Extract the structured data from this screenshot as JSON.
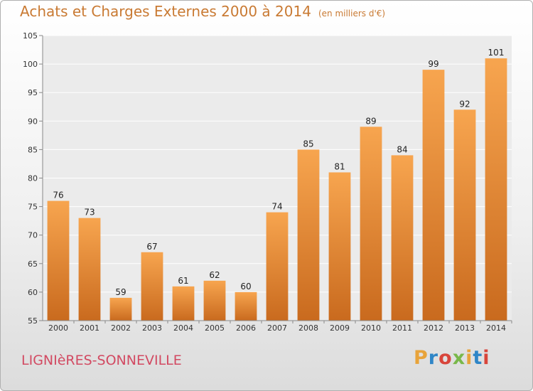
{
  "header": {
    "title": "Achats et Charges Externes 2000 à 2014",
    "unit": "(en milliers d'€)"
  },
  "footer": {
    "commune": "LIGNIèRES-SONNEVILLE",
    "logo_letters": [
      "P",
      "r",
      "o",
      "x",
      "i",
      "t",
      "i"
    ],
    "logo_colors": [
      "#e8a33a",
      "#2f86c7",
      "#d8453b",
      "#79b84a",
      "#e8a33a",
      "#2f86c7",
      "#d8453b"
    ]
  },
  "chart_data": {
    "type": "bar",
    "categories": [
      "2000",
      "2001",
      "2002",
      "2003",
      "2004",
      "2005",
      "2006",
      "2007",
      "2008",
      "2009",
      "2010",
      "2011",
      "2012",
      "2013",
      "2014"
    ],
    "values": [
      76,
      73,
      59,
      67,
      61,
      62,
      60,
      74,
      85,
      81,
      89,
      84,
      99,
      92,
      101
    ],
    "title": "Achats et Charges Externes 2000 à 2014",
    "subtitle": "(en milliers d'€)",
    "xlabel": "",
    "ylabel": "",
    "ylim": [
      55,
      105
    ],
    "yticks": [
      55,
      60,
      65,
      70,
      75,
      80,
      85,
      90,
      95,
      100,
      105
    ],
    "grid": true,
    "bar_color_top": "#f7a54f",
    "bar_color_bottom": "#c96a1e",
    "plot_background": "#ebebeb",
    "grid_color": "#ffffff"
  }
}
